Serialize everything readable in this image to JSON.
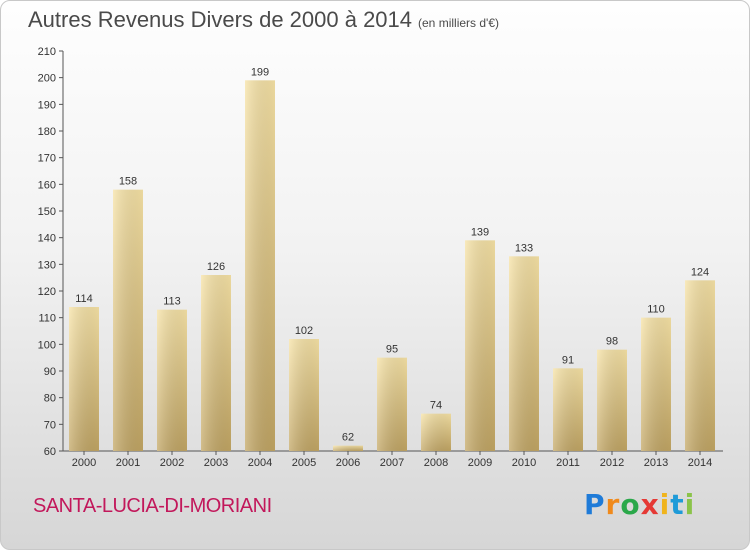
{
  "title": "Autres Revenus Divers de 2000 à 2014",
  "subtitle": "(en milliers d'€)",
  "place": "SANTA-LUCIA-DI-MORIANI",
  "logo": "Proxiti",
  "colors": {
    "bar_light": "#f5dfa0",
    "bar_dark": "#c3a865",
    "place_text": "#c2185b",
    "axis": "#555555"
  },
  "chart_data": {
    "type": "bar",
    "title": "Autres Revenus Divers de 2000 à 2014",
    "xlabel": "",
    "ylabel": "",
    "categories": [
      "2000",
      "2001",
      "2002",
      "2003",
      "2004",
      "2005",
      "2006",
      "2007",
      "2008",
      "2009",
      "2010",
      "2011",
      "2012",
      "2013",
      "2014"
    ],
    "values": [
      114,
      158,
      113,
      126,
      199,
      102,
      62,
      95,
      74,
      139,
      133,
      91,
      98,
      110,
      124
    ],
    "ylim": [
      60,
      210
    ],
    "yticks": [
      60,
      70,
      80,
      90,
      100,
      110,
      120,
      130,
      140,
      150,
      160,
      170,
      180,
      190,
      200,
      210
    ],
    "grid": false,
    "legend": "none"
  }
}
